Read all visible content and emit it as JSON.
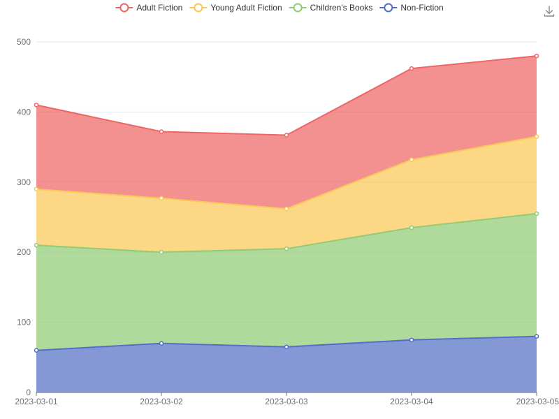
{
  "chart_data": {
    "type": "area",
    "stacked": true,
    "title": "",
    "xlabel": "",
    "ylabel": "",
    "x": [
      "2023-03-01",
      "2023-03-02",
      "2023-03-03",
      "2023-03-04",
      "2023-03-05"
    ],
    "ylim": [
      0,
      500
    ],
    "yticks": [
      0,
      100,
      200,
      300,
      400,
      500
    ],
    "grid": true,
    "legend_position": "top",
    "series": [
      {
        "name": "Adult Fiction",
        "values": [
          120,
          95,
          105,
          130,
          115
        ],
        "color": "#ee6666"
      },
      {
        "name": "Young Adult Fiction",
        "values": [
          80,
          77,
          57,
          97,
          110
        ],
        "color": "#fac858"
      },
      {
        "name": "Children's Books",
        "values": [
          150,
          130,
          140,
          160,
          175
        ],
        "color": "#91cc75"
      },
      {
        "name": "Non-Fiction",
        "values": [
          60,
          70,
          65,
          75,
          80
        ],
        "color": "#5470c6"
      }
    ],
    "stack_order_bottom_to_top": [
      "Non-Fiction",
      "Children's Books",
      "Young Adult Fiction",
      "Adult Fiction"
    ]
  },
  "toolbar": {
    "download_icon": "download-icon"
  }
}
